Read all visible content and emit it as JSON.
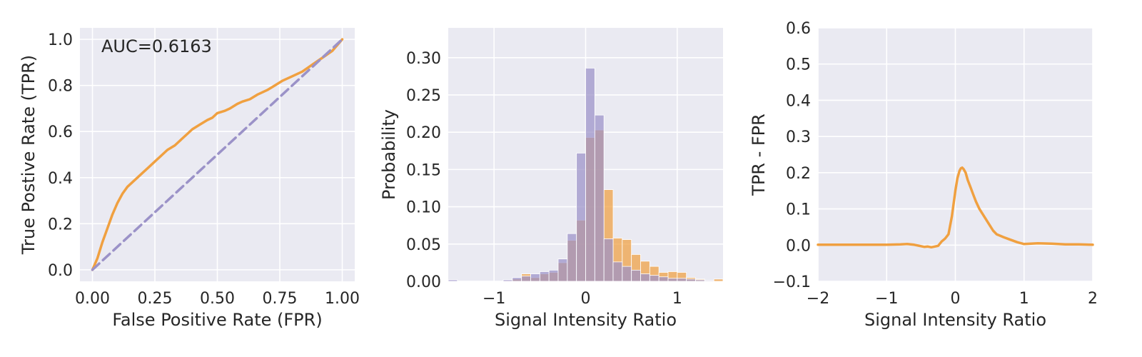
{
  "colors": {
    "background": "#eaeaf2",
    "grid": "#ffffff",
    "orange": "#f0a040",
    "purple": "#9b92c8",
    "text": "#262626"
  },
  "chart_data": [
    {
      "type": "line",
      "xlabel": "False Positive Rate (FPR)",
      "ylabel": "True Postive Rate (TPR)",
      "xlim": [
        -0.05,
        1.05
      ],
      "ylim": [
        -0.05,
        1.05
      ],
      "xticks": [
        0.0,
        0.25,
        0.5,
        0.75,
        1.0
      ],
      "xtick_labels": [
        "0.00",
        "0.25",
        "0.50",
        "0.75",
        "1.00"
      ],
      "yticks": [
        0.0,
        0.2,
        0.4,
        0.6,
        0.8,
        1.0
      ],
      "ytick_labels": [
        "0.0",
        "0.2",
        "0.4",
        "0.6",
        "0.8",
        "1.0"
      ],
      "annotation": "AUC=0.6163",
      "grid": true,
      "series": [
        {
          "style": "solid",
          "color": "orange",
          "x": [
            0,
            0.02,
            0.04,
            0.06,
            0.08,
            0.1,
            0.12,
            0.14,
            0.16,
            0.18,
            0.2,
            0.22,
            0.25,
            0.28,
            0.3,
            0.33,
            0.36,
            0.38,
            0.4,
            0.43,
            0.46,
            0.48,
            0.5,
            0.53,
            0.55,
            0.58,
            0.6,
            0.63,
            0.66,
            0.7,
            0.73,
            0.76,
            0.8,
            0.84,
            0.88,
            0.92,
            0.96,
            1.0
          ],
          "y": [
            0,
            0.05,
            0.12,
            0.18,
            0.24,
            0.29,
            0.33,
            0.36,
            0.38,
            0.4,
            0.42,
            0.44,
            0.47,
            0.5,
            0.52,
            0.54,
            0.57,
            0.59,
            0.61,
            0.63,
            0.65,
            0.66,
            0.68,
            0.69,
            0.7,
            0.72,
            0.73,
            0.74,
            0.76,
            0.78,
            0.8,
            0.82,
            0.84,
            0.86,
            0.89,
            0.92,
            0.95,
            1.0
          ]
        },
        {
          "style": "dashed",
          "color": "purple",
          "x": [
            0,
            1
          ],
          "y": [
            0,
            1
          ]
        }
      ]
    },
    {
      "type": "histogram",
      "xlabel": "Signal Intensity Ratio",
      "ylabel": "Probability",
      "xlim": [
        -1.5,
        1.5
      ],
      "ylim": [
        0,
        0.34
      ],
      "xticks": [
        -1,
        0,
        1
      ],
      "xtick_labels": [
        "−1",
        "0",
        "1"
      ],
      "yticks": [
        0.0,
        0.05,
        0.1,
        0.15,
        0.2,
        0.25,
        0.3
      ],
      "ytick_labels": [
        "0.00",
        "0.05",
        "0.10",
        "0.15",
        "0.20",
        "0.25",
        "0.30"
      ],
      "grid": true,
      "bin_edges": [
        -1.5,
        -1.4,
        -1.3,
        -1.2,
        -1.1,
        -1.0,
        -0.9,
        -0.8,
        -0.7,
        -0.6,
        -0.5,
        -0.4,
        -0.3,
        -0.2,
        -0.1,
        0.0,
        0.1,
        0.2,
        0.3,
        0.4,
        0.5,
        0.6,
        0.7,
        0.8,
        0.9,
        1.0,
        1.1,
        1.2,
        1.3,
        1.4,
        1.5
      ],
      "series": [
        {
          "color": "orange",
          "values": [
            0,
            0,
            0,
            0,
            0,
            0,
            0.001,
            0.003,
            0.01,
            0.005,
            0.01,
            0.012,
            0.025,
            0.055,
            0.082,
            0.193,
            0.203,
            0.123,
            0.058,
            0.056,
            0.036,
            0.027,
            0.02,
            0.012,
            0.013,
            0.012,
            0.005,
            0.003,
            0.001,
            0.003
          ]
        },
        {
          "color": "purple",
          "values": [
            0.002,
            0,
            0,
            0,
            0,
            0,
            0.002,
            0.005,
            0.007,
            0.01,
            0.013,
            0.015,
            0.03,
            0.064,
            0.172,
            0.286,
            0.223,
            0.057,
            0.026,
            0.02,
            0.015,
            0.01,
            0.008,
            0.006,
            0.004,
            0.004,
            0.003,
            0.002,
            0.001,
            0
          ]
        }
      ]
    },
    {
      "type": "line",
      "xlabel": "Signal Intensity Ratio",
      "ylabel": "TPR - FPR",
      "xlim": [
        -2,
        2
      ],
      "ylim": [
        -0.1,
        0.6
      ],
      "xticks": [
        -2,
        -1,
        0,
        1,
        2
      ],
      "xtick_labels": [
        "−2",
        "−1",
        "0",
        "1",
        "2"
      ],
      "yticks": [
        -0.1,
        0.0,
        0.1,
        0.2,
        0.3,
        0.4,
        0.5,
        0.6
      ],
      "ytick_labels": [
        "−0.1",
        "0.0",
        "0.1",
        "0.2",
        "0.3",
        "0.4",
        "0.5",
        "0.6"
      ],
      "grid": true,
      "series": [
        {
          "color": "orange",
          "x": [
            -2.0,
            -1.8,
            -1.6,
            -1.4,
            -1.2,
            -1.0,
            -0.8,
            -0.7,
            -0.6,
            -0.5,
            -0.45,
            -0.4,
            -0.35,
            -0.3,
            -0.25,
            -0.2,
            -0.15,
            -0.1,
            -0.05,
            0.0,
            0.03,
            0.06,
            0.08,
            0.1,
            0.12,
            0.15,
            0.18,
            0.22,
            0.26,
            0.3,
            0.35,
            0.4,
            0.45,
            0.5,
            0.55,
            0.6,
            0.7,
            0.8,
            0.9,
            1.0,
            1.1,
            1.2,
            1.4,
            1.6,
            1.8,
            2.0
          ],
          "y": [
            0.001,
            0.001,
            0.001,
            0.001,
            0.001,
            0.001,
            0.002,
            0.003,
            0.001,
            -0.003,
            -0.005,
            -0.004,
            -0.006,
            -0.004,
            -0.002,
            0.01,
            0.018,
            0.03,
            0.08,
            0.15,
            0.185,
            0.205,
            0.212,
            0.214,
            0.21,
            0.2,
            0.18,
            0.16,
            0.14,
            0.12,
            0.1,
            0.085,
            0.07,
            0.055,
            0.04,
            0.03,
            0.022,
            0.015,
            0.008,
            0.003,
            0.004,
            0.005,
            0.004,
            0.002,
            0.002,
            0.001
          ]
        }
      ]
    }
  ]
}
